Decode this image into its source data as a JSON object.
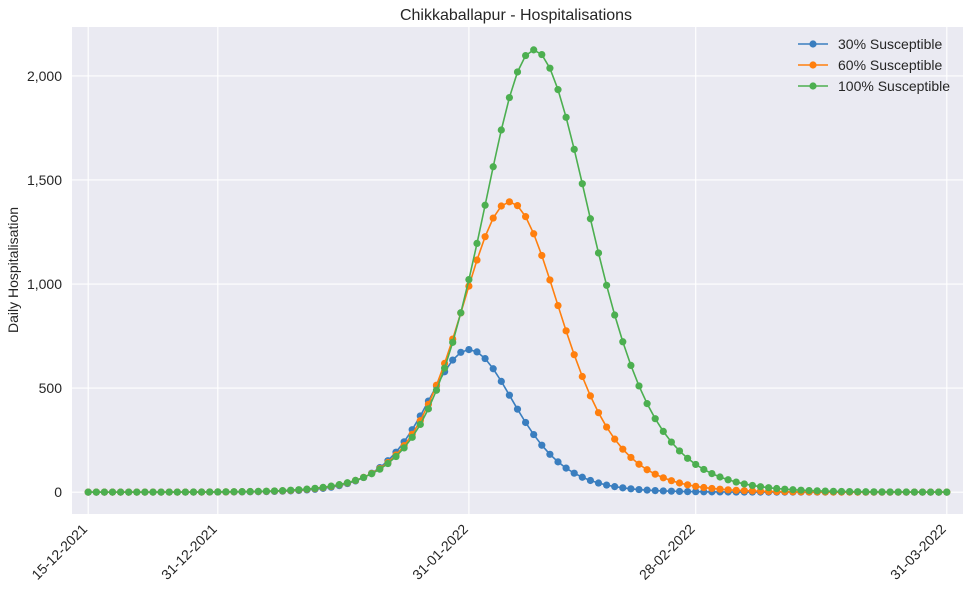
{
  "chart_data": {
    "type": "line",
    "title": "Chikkaballapur - Hospitalisations",
    "xlabel": "",
    "ylabel": "Daily Hospitalisation",
    "x_start": "2021-12-15",
    "x_end": "2022-03-31",
    "xlim": [
      "2021-12-13",
      "2022-04-02"
    ],
    "ylim": [
      -105,
      2235
    ],
    "x_ticks": [
      {
        "date": "2021-12-15",
        "label": "15-12-2021"
      },
      {
        "date": "2021-12-31",
        "label": "31-12-2021"
      },
      {
        "date": "2022-01-31",
        "label": "31-01-2022"
      },
      {
        "date": "2022-02-28",
        "label": "28-02-2022"
      },
      {
        "date": "2022-03-31",
        "label": "31-03-2022"
      }
    ],
    "y_ticks": [
      {
        "value": 0,
        "label": "0"
      },
      {
        "value": 500,
        "label": "500"
      },
      {
        "value": 1000,
        "label": "1,000"
      },
      {
        "value": 1500,
        "label": "1,500"
      },
      {
        "value": 2000,
        "label": "2,000"
      }
    ],
    "grid": true,
    "background": "#EAEAF2",
    "legend_position": "top-right",
    "series": [
      {
        "name": "30% Susceptible",
        "color": "#3A7EBF",
        "peak_date": "2022-01-31",
        "peak": 685,
        "width_up": 7.2,
        "width_down": 7.8
      },
      {
        "name": "60% Susceptible",
        "color": "#FF7F0E",
        "peak_date": "2022-02-05",
        "peak": 1395,
        "width_up": 8.3,
        "width_down": 8.7
      },
      {
        "name": "100% Susceptible",
        "color": "#4CAF50",
        "peak_date": "2022-02-08",
        "peak": 2125,
        "width_up": 8.8,
        "width_down": 9.7
      }
    ]
  }
}
